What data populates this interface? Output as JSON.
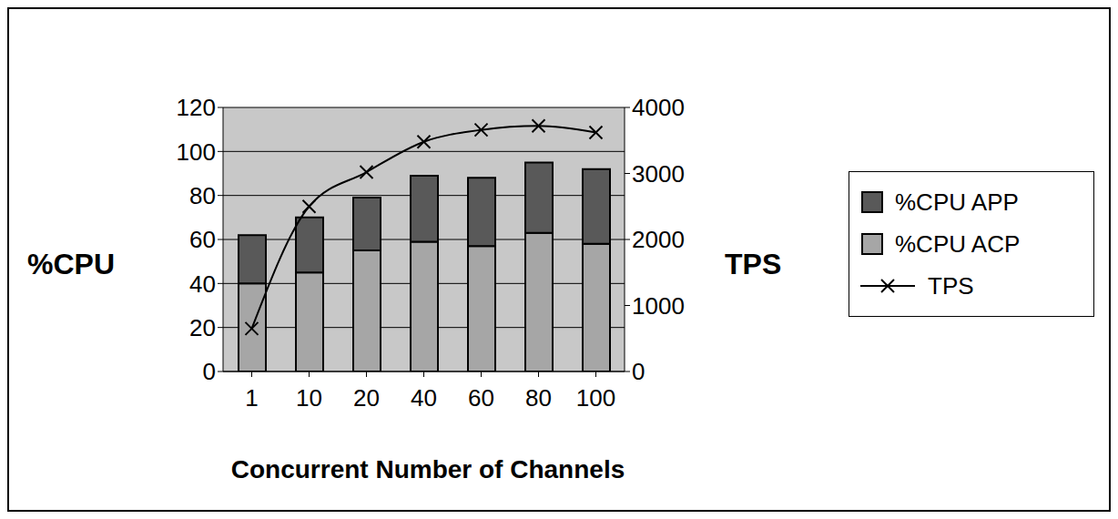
{
  "chart_data": {
    "type": "bar",
    "stacked": true,
    "grid": true,
    "legend": "right",
    "x_label": "Concurrent Number of Channels",
    "y_label": "%CPU",
    "y2_label": "TPS",
    "categories": [
      "1",
      "10",
      "20",
      "40",
      "60",
      "80",
      "100"
    ],
    "ylim": [
      0,
      120
    ],
    "yticks": [
      0,
      20,
      40,
      60,
      80,
      100,
      120
    ],
    "y2lim": [
      0,
      4000
    ],
    "y2ticks": [
      0,
      1000,
      2000,
      3000,
      4000
    ],
    "series": [
      {
        "name": "%CPU APP",
        "type": "bar",
        "color": "#595959",
        "values": [
          22,
          25,
          24,
          30,
          31,
          32,
          34
        ]
      },
      {
        "name": "%CPU ACP",
        "type": "bar",
        "color": "#a6a6a6",
        "values": [
          40,
          45,
          55,
          59,
          57,
          63,
          58
        ]
      },
      {
        "name": "TPS",
        "type": "line",
        "axis": "y2",
        "color": "#000000",
        "marker": "x",
        "values": [
          650,
          2500,
          3020,
          3480,
          3660,
          3720,
          3620
        ]
      }
    ]
  }
}
